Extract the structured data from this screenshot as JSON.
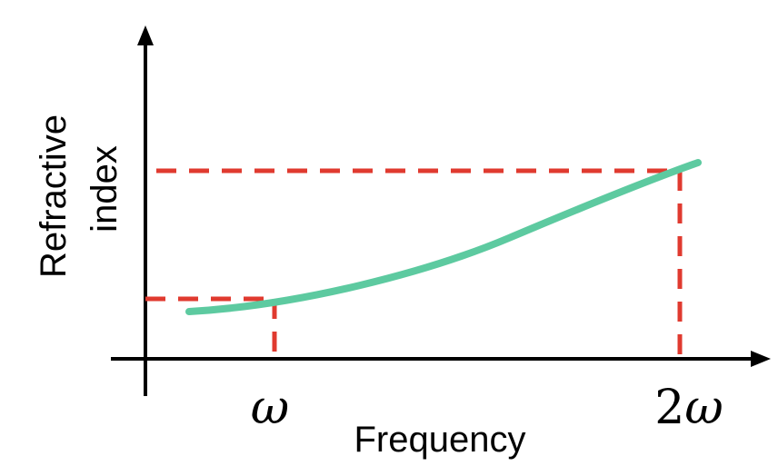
{
  "diagram": {
    "x_axis_label": "Frequency",
    "y_axis_label_line1": "Refractive",
    "y_axis_label_line2": "index",
    "x_tick_1": "ω",
    "x_tick_2_number": "2",
    "x_tick_2_symbol": "ω"
  },
  "colors": {
    "curve": "#5dcaa0",
    "guide_lines": "#e03a2f",
    "axes": "#000000"
  }
}
